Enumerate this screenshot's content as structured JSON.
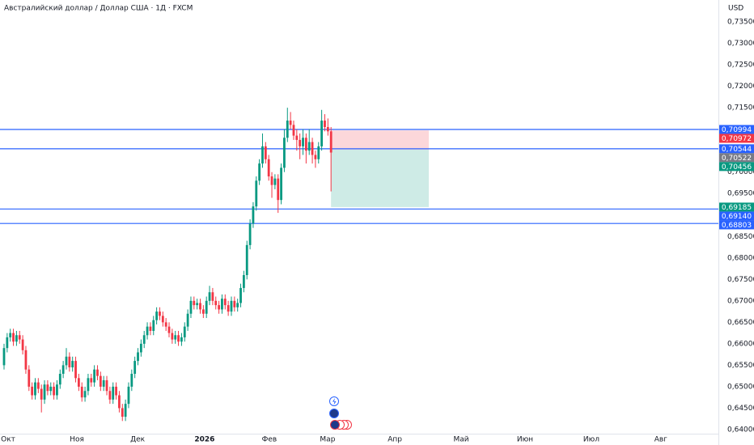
{
  "chart_data": {
    "type": "candlestick",
    "title": "Австралийский доллар / Доллар США · 1Д · FXCM",
    "currency": "USD",
    "up_color": "#089981",
    "down_color": "#f23645",
    "grid": false,
    "x": [
      0,
      1,
      2,
      3,
      4,
      5,
      6,
      7,
      8,
      9,
      10,
      11,
      12,
      13,
      14,
      15,
      16,
      17,
      18,
      19,
      20,
      21,
      22,
      23,
      24,
      25,
      26,
      27,
      28,
      29,
      30,
      31,
      32,
      33,
      34,
      35,
      36,
      37,
      38,
      39,
      40,
      41,
      42,
      43,
      44,
      45,
      46,
      47,
      48,
      49,
      50,
      51,
      52,
      53,
      54,
      55,
      56,
      57,
      58,
      59,
      60,
      61,
      62,
      63,
      64,
      65,
      66,
      67,
      68,
      69,
      70,
      71,
      72,
      73,
      74,
      75,
      76,
      77,
      78,
      79,
      80,
      81,
      82,
      83,
      84,
      85,
      86,
      87,
      88,
      89,
      90,
      91,
      92,
      93,
      94,
      95,
      96,
      97,
      98,
      99,
      100,
      101,
      102,
      103,
      104,
      105
    ],
    "open": [
      0.655,
      0.659,
      0.6615,
      0.6625,
      0.6605,
      0.662,
      0.661,
      0.6585,
      0.654,
      0.65,
      0.648,
      0.651,
      0.6495,
      0.647,
      0.6505,
      0.649,
      0.65,
      0.648,
      0.6505,
      0.653,
      0.655,
      0.657,
      0.6545,
      0.656,
      0.652,
      0.65,
      0.6475,
      0.649,
      0.652,
      0.651,
      0.654,
      0.6525,
      0.65,
      0.6515,
      0.649,
      0.647,
      0.65,
      0.648,
      0.645,
      0.643,
      0.646,
      0.65,
      0.653,
      0.656,
      0.658,
      0.66,
      0.662,
      0.664,
      0.663,
      0.6655,
      0.6675,
      0.6665,
      0.665,
      0.664,
      0.6625,
      0.661,
      0.662,
      0.6605,
      0.6615,
      0.664,
      0.667,
      0.67,
      0.669,
      0.6695,
      0.668,
      0.667,
      0.67,
      0.672,
      0.67,
      0.669,
      0.668,
      0.6705,
      0.669,
      0.6675,
      0.67,
      0.6685,
      0.6695,
      0.673,
      0.676,
      0.683,
      0.688,
      0.692,
      0.698,
      0.702,
      0.706,
      0.703,
      0.699,
      0.697,
      0.6985,
      0.6935,
      0.701,
      0.708,
      0.712,
      0.711,
      0.7085,
      0.7075,
      0.706,
      0.708,
      0.705,
      0.707,
      0.704,
      0.703,
      0.706,
      0.712,
      0.7105,
      0.7095
    ],
    "high": [
      0.66,
      0.6625,
      0.6635,
      0.6635,
      0.663,
      0.663,
      0.662,
      0.6595,
      0.655,
      0.651,
      0.652,
      0.652,
      0.6505,
      0.6515,
      0.6515,
      0.651,
      0.651,
      0.6515,
      0.654,
      0.656,
      0.659,
      0.658,
      0.657,
      0.657,
      0.653,
      0.651,
      0.65,
      0.653,
      0.653,
      0.655,
      0.655,
      0.6535,
      0.6525,
      0.6525,
      0.65,
      0.651,
      0.651,
      0.649,
      0.646,
      0.647,
      0.651,
      0.654,
      0.657,
      0.659,
      0.661,
      0.663,
      0.665,
      0.665,
      0.6665,
      0.6685,
      0.6685,
      0.6675,
      0.666,
      0.665,
      0.6635,
      0.663,
      0.663,
      0.6625,
      0.665,
      0.668,
      0.671,
      0.671,
      0.6705,
      0.6705,
      0.669,
      0.671,
      0.6735,
      0.673,
      0.671,
      0.67,
      0.6715,
      0.6715,
      0.67,
      0.671,
      0.671,
      0.6705,
      0.674,
      0.677,
      0.684,
      0.689,
      0.693,
      0.699,
      0.703,
      0.709,
      0.707,
      0.704,
      0.7,
      0.6995,
      0.6995,
      0.702,
      0.71,
      0.715,
      0.714,
      0.712,
      0.71,
      0.709,
      0.71,
      0.709,
      0.71,
      0.708,
      0.705,
      0.707,
      0.7145,
      0.7135,
      0.7125,
      0.7105
    ],
    "low": [
      0.654,
      0.658,
      0.6605,
      0.6595,
      0.6595,
      0.66,
      0.6575,
      0.653,
      0.649,
      0.647,
      0.647,
      0.6485,
      0.644,
      0.646,
      0.648,
      0.648,
      0.647,
      0.647,
      0.6495,
      0.652,
      0.654,
      0.6535,
      0.6535,
      0.651,
      0.649,
      0.6465,
      0.6465,
      0.648,
      0.65,
      0.65,
      0.6515,
      0.649,
      0.649,
      0.648,
      0.646,
      0.646,
      0.647,
      0.644,
      0.642,
      0.642,
      0.645,
      0.649,
      0.652,
      0.655,
      0.657,
      0.659,
      0.661,
      0.662,
      0.662,
      0.6645,
      0.6655,
      0.664,
      0.663,
      0.6615,
      0.66,
      0.66,
      0.6595,
      0.6595,
      0.6605,
      0.663,
      0.666,
      0.668,
      0.668,
      0.667,
      0.666,
      0.666,
      0.669,
      0.669,
      0.668,
      0.667,
      0.667,
      0.668,
      0.6665,
      0.6665,
      0.6675,
      0.6675,
      0.6685,
      0.672,
      0.675,
      0.682,
      0.687,
      0.691,
      0.697,
      0.701,
      0.702,
      0.698,
      0.694,
      0.696,
      0.6905,
      0.6925,
      0.7,
      0.707,
      0.71,
      0.7075,
      0.705,
      0.703,
      0.704,
      0.702,
      0.704,
      0.702,
      0.701,
      0.702,
      0.705,
      0.7095,
      0.7085,
      0.6955
    ],
    "close": [
      0.659,
      0.6615,
      0.6625,
      0.6605,
      0.662,
      0.661,
      0.6585,
      0.654,
      0.65,
      0.648,
      0.651,
      0.6495,
      0.647,
      0.6505,
      0.649,
      0.65,
      0.648,
      0.6505,
      0.653,
      0.655,
      0.657,
      0.6545,
      0.656,
      0.652,
      0.65,
      0.6475,
      0.649,
      0.652,
      0.651,
      0.654,
      0.6525,
      0.65,
      0.6515,
      0.649,
      0.647,
      0.65,
      0.648,
      0.645,
      0.643,
      0.646,
      0.65,
      0.653,
      0.656,
      0.658,
      0.66,
      0.662,
      0.664,
      0.663,
      0.6655,
      0.6675,
      0.6665,
      0.665,
      0.664,
      0.6625,
      0.661,
      0.662,
      0.6605,
      0.6615,
      0.664,
      0.667,
      0.67,
      0.669,
      0.6695,
      0.668,
      0.667,
      0.67,
      0.672,
      0.67,
      0.669,
      0.668,
      0.6705,
      0.669,
      0.6675,
      0.67,
      0.6685,
      0.6695,
      0.673,
      0.676,
      0.683,
      0.688,
      0.692,
      0.698,
      0.702,
      0.706,
      0.703,
      0.699,
      0.697,
      0.6985,
      0.6935,
      0.701,
      0.708,
      0.712,
      0.711,
      0.7085,
      0.7075,
      0.706,
      0.708,
      0.705,
      0.707,
      0.704,
      0.703,
      0.706,
      0.712,
      0.7105,
      0.7095,
      0.70456
    ],
    "xlim": [
      -1.3,
      229.4
    ],
    "xticks": [
      {
        "value": 1.3,
        "label": "Окт"
      },
      {
        "value": 23.4,
        "label": "Ноя"
      },
      {
        "value": 42.9,
        "label": "Дек"
      },
      {
        "value": 64.4,
        "label": "2026"
      },
      {
        "value": 85.2,
        "label": "Фев"
      },
      {
        "value": 103.9,
        "label": "Мар"
      },
      {
        "value": 125.5,
        "label": "Апр"
      },
      {
        "value": 146.8,
        "label": "Май"
      },
      {
        "value": 167.3,
        "label": "Июн"
      },
      {
        "value": 188.6,
        "label": "Июл"
      },
      {
        "value": 210.9,
        "label": "Авг"
      }
    ],
    "ylim": [
      0.63905,
      0.7401
    ],
    "yticks": [
      {
        "value": 0.64,
        "label": "0,64000"
      },
      {
        "value": 0.645,
        "label": "0,64500"
      },
      {
        "value": 0.65,
        "label": "0,65000"
      },
      {
        "value": 0.655,
        "label": "0,65500"
      },
      {
        "value": 0.66,
        "label": "0,66000"
      },
      {
        "value": 0.665,
        "label": "0,66500"
      },
      {
        "value": 0.67,
        "label": "0,67000"
      },
      {
        "value": 0.675,
        "label": "0,67500"
      },
      {
        "value": 0.68,
        "label": "0,68000"
      },
      {
        "value": 0.685,
        "label": "0,68500"
      },
      {
        "value": 0.69,
        "label": "0,69000"
      },
      {
        "value": 0.695,
        "label": "0,69500"
      },
      {
        "value": 0.7,
        "label": "0,70000"
      },
      {
        "value": 0.705,
        "label": "0,70500"
      },
      {
        "value": 0.71,
        "label": "0,71000"
      },
      {
        "value": 0.715,
        "label": "0,71500"
      },
      {
        "value": 0.72,
        "label": "0,72000"
      },
      {
        "value": 0.725,
        "label": "0,72500"
      },
      {
        "value": 0.73,
        "label": "0,73000"
      },
      {
        "value": 0.735,
        "label": "0,73500"
      }
    ],
    "level_color": "#2962ff",
    "levels": [
      {
        "value": 0.70994,
        "label": "0,70994"
      },
      {
        "value": 0.70544,
        "label": "0,70544"
      },
      {
        "value": 0.6914,
        "label": "0,69140"
      },
      {
        "value": 0.68803,
        "label": "0,68803"
      }
    ],
    "position": {
      "x_start": 105,
      "x_end": 136.4,
      "stop": {
        "value": 0.70972,
        "label": "0,70972",
        "color": "#f23645"
      },
      "entry": {
        "value": 0.70522,
        "label": "0,70522",
        "color": "#787b86"
      },
      "target": {
        "value": 0.69185,
        "label": "0,69185",
        "color": "#089981"
      }
    },
    "last_price": {
      "value": 0.70456,
      "label": "0,70456",
      "color": "#089981"
    }
  }
}
